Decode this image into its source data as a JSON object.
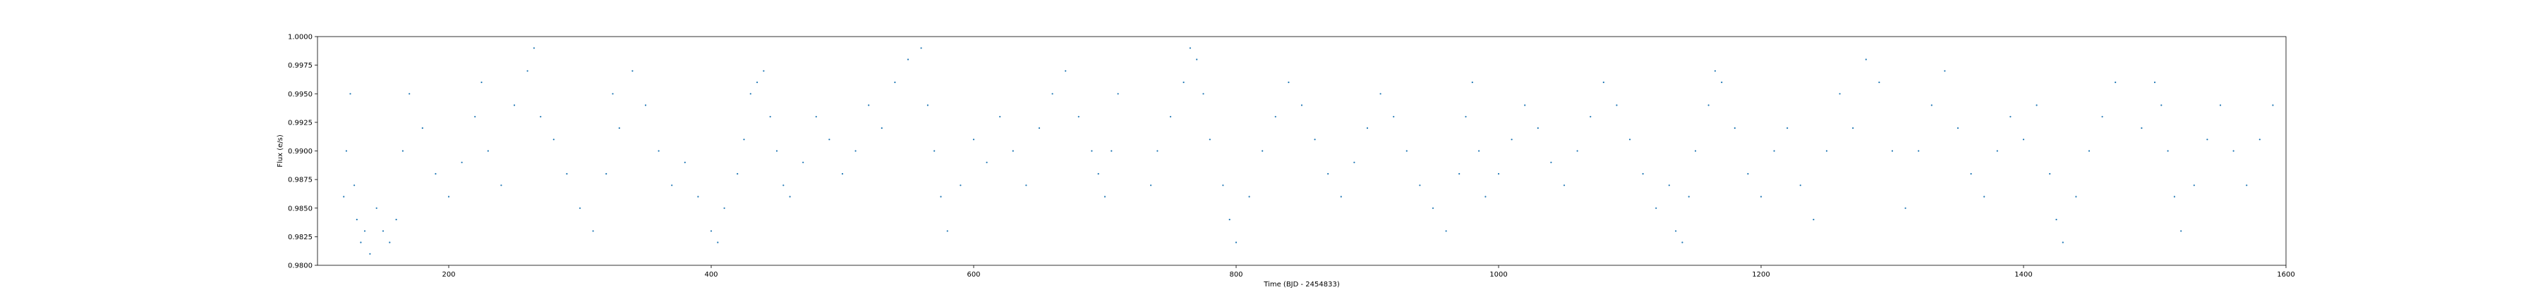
{
  "chart_data": {
    "type": "scatter",
    "title": "",
    "xlabel": "Time (BJD - 2454833)",
    "ylabel": "Flux (e/s)",
    "xlim": [
      100,
      1600
    ],
    "ylim": [
      0.98,
      1.0
    ],
    "xticks": [
      "200",
      "400",
      "600",
      "800",
      "1000",
      "1200",
      "1400",
      "1600"
    ],
    "yticks": [
      "0.9800",
      "0.9825",
      "0.9850",
      "0.9875",
      "0.9900",
      "0.9925",
      "0.9950",
      "0.9975",
      "1.0000"
    ],
    "grid": false,
    "legend": "none",
    "point_color": "#1f77b4",
    "series": [
      {
        "x": [
          120,
          122,
          125,
          128,
          130,
          133,
          136,
          140,
          145,
          150,
          155,
          160,
          165,
          170,
          180,
          190,
          200,
          210,
          220,
          225,
          230,
          240,
          250,
          260,
          265,
          270,
          280,
          290,
          300,
          310,
          320,
          325,
          330,
          340,
          350,
          360,
          370,
          380,
          390,
          400,
          405,
          410,
          420,
          425,
          430,
          435,
          440,
          445,
          450,
          455,
          460,
          470,
          480,
          490,
          500,
          510,
          520,
          530,
          540,
          550,
          560,
          565,
          570,
          575,
          580,
          590,
          600,
          610,
          620,
          630,
          640,
          650,
          660,
          670,
          680,
          690,
          695,
          700,
          705,
          710,
          735,
          740,
          750,
          760,
          765,
          770,
          775,
          780,
          790,
          795,
          800,
          810,
          820,
          830,
          840,
          850,
          860,
          870,
          880,
          890,
          900,
          910,
          920,
          930,
          940,
          950,
          960,
          970,
          975,
          980,
          985,
          990,
          1000,
          1010,
          1020,
          1030,
          1040,
          1050,
          1060,
          1070,
          1080,
          1090,
          1100,
          1110,
          1120,
          1130,
          1135,
          1140,
          1145,
          1150,
          1160,
          1165,
          1170,
          1180,
          1190,
          1200,
          1210,
          1220,
          1230,
          1240,
          1250,
          1260,
          1270,
          1280,
          1290,
          1300,
          1310,
          1320,
          1330,
          1340,
          1350,
          1360,
          1370,
          1380,
          1390,
          1400,
          1410,
          1420,
          1425,
          1430,
          1440,
          1450,
          1460,
          1470,
          1490,
          1500,
          1505,
          1510,
          1515,
          1520,
          1530,
          1540,
          1550,
          1560,
          1570,
          1580,
          1590
        ],
        "y": [
          0.986,
          0.99,
          0.995,
          0.987,
          0.984,
          0.982,
          0.983,
          0.981,
          0.985,
          0.983,
          0.982,
          0.984,
          0.99,
          0.995,
          0.992,
          0.988,
          0.986,
          0.989,
          0.993,
          0.996,
          0.99,
          0.987,
          0.994,
          0.997,
          0.999,
          0.993,
          0.991,
          0.988,
          0.985,
          0.983,
          0.988,
          0.995,
          0.992,
          0.997,
          0.994,
          0.99,
          0.987,
          0.989,
          0.986,
          0.983,
          0.982,
          0.985,
          0.988,
          0.991,
          0.995,
          0.996,
          0.997,
          0.993,
          0.99,
          0.987,
          0.986,
          0.989,
          0.993,
          0.991,
          0.988,
          0.99,
          0.994,
          0.992,
          0.996,
          0.998,
          0.999,
          0.994,
          0.99,
          0.986,
          0.983,
          0.987,
          0.991,
          0.989,
          0.993,
          0.99,
          0.987,
          0.992,
          0.995,
          0.997,
          0.993,
          0.99,
          0.988,
          0.986,
          0.99,
          0.995,
          0.987,
          0.99,
          0.993,
          0.996,
          0.999,
          0.998,
          0.995,
          0.991,
          0.987,
          0.984,
          0.982,
          0.986,
          0.99,
          0.993,
          0.996,
          0.994,
          0.991,
          0.988,
          0.986,
          0.989,
          0.992,
          0.995,
          0.993,
          0.99,
          0.987,
          0.985,
          0.983,
          0.988,
          0.993,
          0.996,
          0.99,
          0.986,
          0.988,
          0.991,
          0.994,
          0.992,
          0.989,
          0.987,
          0.99,
          0.993,
          0.996,
          0.994,
          0.991,
          0.988,
          0.985,
          0.987,
          0.983,
          0.982,
          0.986,
          0.99,
          0.994,
          0.997,
          0.996,
          0.992,
          0.988,
          0.986,
          0.99,
          0.992,
          0.987,
          0.984,
          0.99,
          0.995,
          0.992,
          0.998,
          0.996,
          0.99,
          0.985,
          0.99,
          0.994,
          0.997,
          0.992,
          0.988,
          0.986,
          0.99,
          0.993,
          0.991,
          0.994,
          0.988,
          0.984,
          0.982,
          0.986,
          0.99,
          0.993,
          0.996,
          0.992,
          0.996,
          0.994,
          0.99,
          0.986,
          0.983,
          0.987,
          0.991,
          0.994,
          0.99,
          0.987,
          0.991,
          0.994
        ]
      }
    ]
  }
}
